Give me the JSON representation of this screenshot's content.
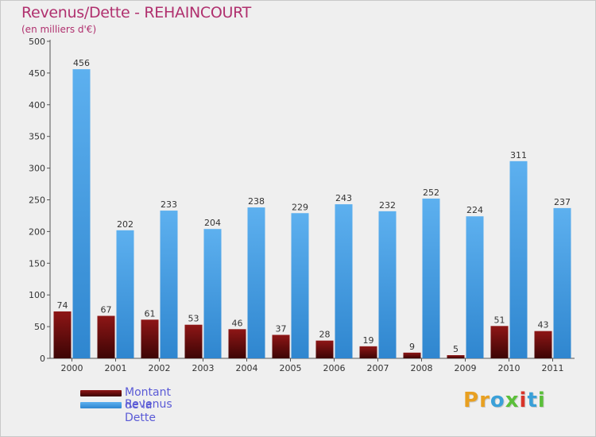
{
  "chart_data": {
    "type": "bar",
    "title": "Revenus/Dette - REHAINCOURT",
    "subtitle": "(en milliers d'€)",
    "categories": [
      "2000",
      "2001",
      "2002",
      "2003",
      "2004",
      "2005",
      "2006",
      "2007",
      "2008",
      "2009",
      "2010",
      "2011"
    ],
    "series": [
      {
        "name": "Montant de la Dette",
        "color": "#7a0c0c",
        "values": [
          74,
          67,
          61,
          53,
          46,
          37,
          28,
          19,
          9,
          5,
          51,
          43
        ]
      },
      {
        "name": "Revenus",
        "color": "#4a9fe3",
        "values": [
          456,
          202,
          233,
          204,
          238,
          229,
          243,
          232,
          252,
          224,
          311,
          237
        ]
      }
    ],
    "ylim": [
      0,
      500
    ],
    "yticks": [
      0,
      50,
      100,
      150,
      200,
      250,
      300,
      350,
      400,
      450,
      500
    ],
    "grid": false,
    "legend_position": "bottom-left"
  },
  "logo": {
    "letters": [
      "P",
      "r",
      "o",
      "x",
      "i",
      "t",
      "i"
    ],
    "colors": [
      "#e8a021",
      "#e8a021",
      "#3aa0d8",
      "#5bbf3a",
      "#d8342a",
      "#3aa0d8",
      "#5bbf3a"
    ]
  }
}
